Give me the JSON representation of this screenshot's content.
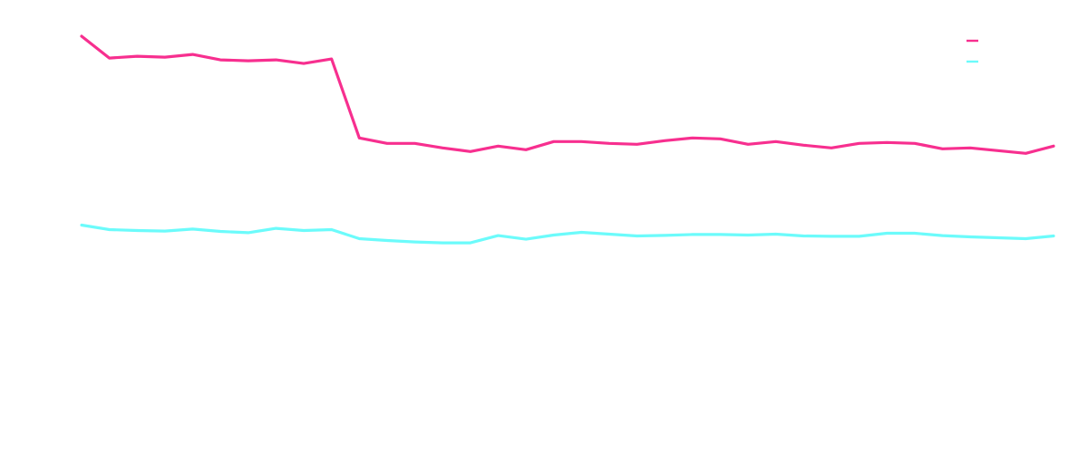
{
  "chart_data": {
    "type": "line",
    "title": "",
    "xlabel": "",
    "ylabel": "",
    "grid": false,
    "legend": "top-right",
    "x": [
      1,
      2,
      3,
      4,
      5,
      6,
      7,
      8,
      9,
      10,
      11,
      12,
      13,
      14,
      15,
      16,
      17,
      18,
      19,
      20,
      21,
      22,
      23,
      24,
      25,
      26,
      27,
      28,
      29,
      30,
      31,
      32,
      33,
      34,
      35,
      36
    ],
    "xlim": [
      1,
      36
    ],
    "ylim": [
      0,
      23.6
    ],
    "series": [
      {
        "color": "#f72f8f",
        "values": [
          22.6,
          21.4,
          21.5,
          21.45,
          21.6,
          21.3,
          21.25,
          21.3,
          21.1,
          21.35,
          17.0,
          16.7,
          16.7,
          16.45,
          16.25,
          16.55,
          16.35,
          16.8,
          16.8,
          16.7,
          16.65,
          16.85,
          17.0,
          16.95,
          16.65,
          16.8,
          16.6,
          16.45,
          16.7,
          16.75,
          16.7,
          16.4,
          16.45,
          16.3,
          16.15,
          16.55
        ]
      },
      {
        "color": "#6cfbfb",
        "values": [
          12.2,
          11.95,
          11.9,
          11.87,
          11.98,
          11.85,
          11.78,
          12.02,
          11.9,
          11.95,
          11.45,
          11.35,
          11.27,
          11.22,
          11.22,
          11.62,
          11.42,
          11.65,
          11.8,
          11.7,
          11.6,
          11.63,
          11.68,
          11.68,
          11.65,
          11.7,
          11.6,
          11.58,
          11.58,
          11.75,
          11.75,
          11.62,
          11.55,
          11.5,
          11.45,
          11.6
        ]
      }
    ]
  }
}
